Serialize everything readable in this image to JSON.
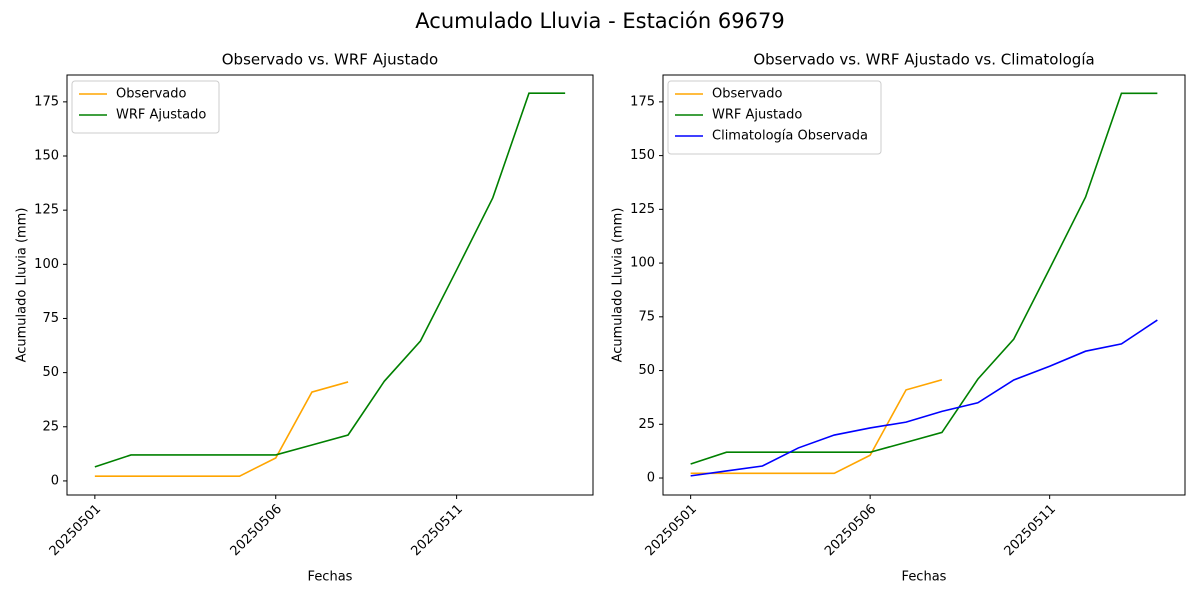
{
  "title": "Acumulado Lluvia - Estación 69679",
  "chart_data": [
    {
      "type": "line",
      "title": "Observado vs. WRF Ajustado",
      "xlabel": "Fechas",
      "ylabel": "Acumulado Lluvia (mm)",
      "categories": [
        "20250501",
        null,
        null,
        null,
        null,
        "20250506",
        null,
        null,
        null,
        null,
        "20250511",
        null,
        null,
        null
      ],
      "series": [
        {
          "name": "Observado",
          "color": "#ffa500",
          "values": [
            2.2,
            2.2,
            2.2,
            2.2,
            2.2,
            10.6,
            41,
            45.7,
            null,
            null,
            null,
            null,
            null,
            null
          ]
        },
        {
          "name": "WRF Ajustado",
          "color": "#008000",
          "values": [
            6.5,
            12,
            12,
            12,
            12,
            12,
            16.6,
            21.2,
            46,
            64.6,
            97.4,
            130.7,
            179,
            179
          ]
        }
      ],
      "ylim": [
        -6.5,
        187.4
      ],
      "yticks": [
        0,
        25,
        50,
        75,
        100,
        125,
        150,
        175
      ],
      "legend": "upper left"
    },
    {
      "type": "line",
      "title": "Observado vs. WRF Ajustado vs. Climatología",
      "xlabel": "Fechas",
      "ylabel": "Acumulado Lluvia (mm)",
      "categories": [
        "20250501",
        null,
        null,
        null,
        null,
        "20250506",
        null,
        null,
        null,
        null,
        "20250511",
        null,
        null,
        null
      ],
      "series": [
        {
          "name": "Observado",
          "color": "#ffa500",
          "values": [
            2.2,
            2.2,
            2.2,
            2.2,
            2.2,
            10.6,
            41,
            45.7,
            null,
            null,
            null,
            null,
            null,
            null
          ]
        },
        {
          "name": "WRF Ajustado",
          "color": "#008000",
          "values": [
            6.5,
            12,
            12,
            12,
            12,
            12,
            16.6,
            21.2,
            46,
            64.6,
            97.4,
            130.7,
            179,
            179
          ]
        },
        {
          "name": "Climatología Observada",
          "color": "#0000ff",
          "values": [
            1,
            3.3,
            5.6,
            14,
            20,
            23.3,
            26,
            31,
            35,
            45.6,
            52,
            59,
            62.4,
            73.5
          ]
        }
      ],
      "ylim": [
        -7.9,
        187.5
      ],
      "yticks": [
        0,
        25,
        50,
        75,
        100,
        125,
        150,
        175
      ],
      "legend": "upper left"
    }
  ]
}
